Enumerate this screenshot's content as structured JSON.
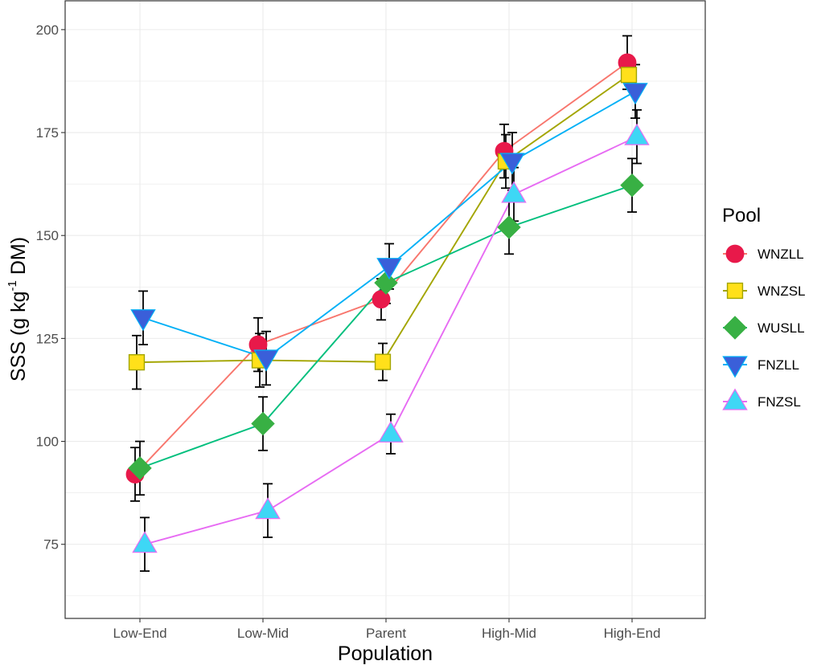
{
  "chart_data": {
    "type": "line",
    "title": "",
    "xlabel": "Population",
    "ylabel": {
      "main": "SSS  (g kg",
      "superscript": "-1",
      "suffix": " DM)"
    },
    "categories": [
      "Low-End",
      "Low-Mid",
      "Parent",
      "High-Mid",
      "High-End"
    ],
    "ylim": [
      57,
      207
    ],
    "yticks": [
      75,
      100,
      125,
      150,
      175,
      200
    ],
    "grid": true,
    "legend": {
      "title": "Pool",
      "position": "right"
    },
    "series": [
      {
        "name": "WNZLL",
        "marker": "circle",
        "line_color": "#F8766D",
        "marker_color": "#E8194A",
        "values": [
          92,
          123.5,
          134.5,
          170.5,
          192
        ],
        "errors": [
          6.5,
          6.5,
          5,
          6.5,
          6.5
        ]
      },
      {
        "name": "WNZSL",
        "marker": "square",
        "line_color": "#A3A500",
        "marker_color": "#FFE01A",
        "values": [
          119.2,
          119.7,
          119.3,
          168,
          189
        ],
        "errors": [
          6.5,
          6.5,
          4.5,
          6.5,
          2.5
        ]
      },
      {
        "name": "WUSLL",
        "marker": "diamond",
        "line_color": "#00BF7D",
        "marker_color": "#38B044",
        "values": [
          93.5,
          104.3,
          138.5,
          152,
          162.2
        ],
        "errors": [
          6.5,
          6.5,
          5,
          6.5,
          6.5
        ]
      },
      {
        "name": "FNZLL",
        "marker": "triangle-down",
        "line_color": "#00B0F6",
        "marker_color": "#3A5FD9",
        "values": [
          130,
          120.2,
          142.5,
          168,
          185
        ],
        "errors": [
          6.5,
          6.5,
          5.5,
          7,
          6.5
        ]
      },
      {
        "name": "FNZSL",
        "marker": "triangle-up",
        "line_color": "#E76BF3",
        "marker_color": "#3ED7F5",
        "values": [
          75,
          83.2,
          101.8,
          160,
          174
        ],
        "errors": [
          6.5,
          6.5,
          4.8,
          6.5,
          6.5
        ]
      }
    ]
  }
}
